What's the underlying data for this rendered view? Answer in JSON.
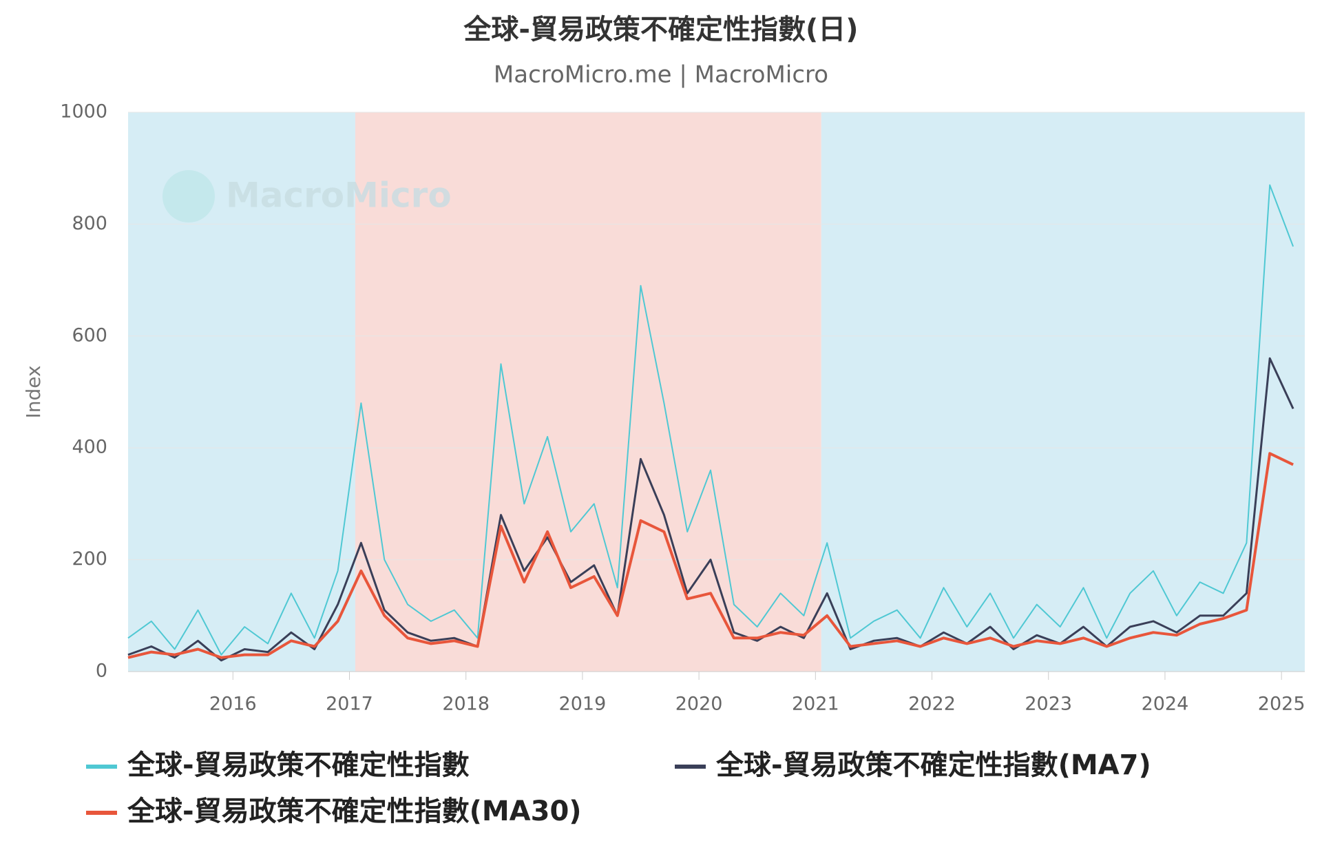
{
  "chart_data": {
    "type": "line",
    "title": "全球-貿易政策不確定性指數(日)",
    "subtitle": "MacroMicro.me | MacroMicro",
    "watermark": "MacroMicro",
    "y_label": "Index",
    "x": [
      2015.1,
      2015.3,
      2015.5,
      2015.7,
      2015.9,
      2016.1,
      2016.3,
      2016.5,
      2016.7,
      2016.9,
      2017.1,
      2017.3,
      2017.5,
      2017.7,
      2017.9,
      2018.1,
      2018.3,
      2018.5,
      2018.7,
      2018.9,
      2019.1,
      2019.3,
      2019.5,
      2019.7,
      2019.9,
      2020.1,
      2020.3,
      2020.5,
      2020.7,
      2020.9,
      2021.1,
      2021.3,
      2021.5,
      2021.7,
      2021.9,
      2022.1,
      2022.3,
      2022.5,
      2022.7,
      2022.9,
      2023.1,
      2023.3,
      2023.5,
      2023.7,
      2023.9,
      2024.1,
      2024.3,
      2024.5,
      2024.7,
      2024.9,
      2025.1
    ],
    "series": [
      {
        "name": "全球-貿易政策不確定性指數",
        "color": "#4fc8d3",
        "width": 2,
        "values": [
          60,
          90,
          40,
          110,
          30,
          80,
          50,
          140,
          60,
          180,
          480,
          200,
          120,
          90,
          110,
          60,
          550,
          300,
          420,
          250,
          300,
          150,
          690,
          480,
          250,
          360,
          120,
          80,
          140,
          100,
          230,
          60,
          90,
          110,
          60,
          150,
          80,
          140,
          60,
          120,
          80,
          150,
          60,
          140,
          180,
          100,
          160,
          140,
          230,
          870,
          760
        ]
      },
      {
        "name": "全球-貿易政策不確定性指數(MA7)",
        "color": "#3a3f58",
        "width": 3,
        "values": [
          30,
          45,
          25,
          55,
          20,
          40,
          35,
          70,
          40,
          120,
          230,
          110,
          70,
          55,
          60,
          45,
          280,
          180,
          240,
          160,
          190,
          100,
          380,
          280,
          140,
          200,
          70,
          55,
          80,
          60,
          140,
          40,
          55,
          60,
          45,
          70,
          50,
          80,
          40,
          65,
          50,
          80,
          45,
          80,
          90,
          70,
          100,
          100,
          140,
          560,
          470
        ]
      },
      {
        "name": "全球-貿易政策不確定性指數(MA30)",
        "color": "#e8563b",
        "width": 4,
        "values": [
          25,
          35,
          30,
          40,
          25,
          30,
          30,
          55,
          45,
          90,
          180,
          100,
          60,
          50,
          55,
          45,
          260,
          160,
          250,
          150,
          170,
          100,
          270,
          250,
          130,
          140,
          60,
          60,
          70,
          65,
          100,
          45,
          50,
          55,
          45,
          60,
          50,
          60,
          45,
          55,
          50,
          60,
          45,
          60,
          70,
          65,
          85,
          95,
          110,
          390,
          370
        ]
      }
    ],
    "bands": [
      {
        "from": 2015.1,
        "to": 2017.05,
        "color": "#d6edf5"
      },
      {
        "from": 2017.05,
        "to": 2021.05,
        "color": "#f9dcd8"
      },
      {
        "from": 2021.05,
        "to": 2025.2,
        "color": "#d6edf5"
      }
    ],
    "xlim": [
      2015.1,
      2025.2
    ],
    "xticks": [
      2016,
      2017,
      2018,
      2019,
      2020,
      2021,
      2022,
      2023,
      2024,
      2025
    ],
    "ylim": [
      0,
      1000
    ],
    "yticks": [
      0,
      200,
      400,
      600,
      800,
      1000
    ],
    "grid": true
  }
}
